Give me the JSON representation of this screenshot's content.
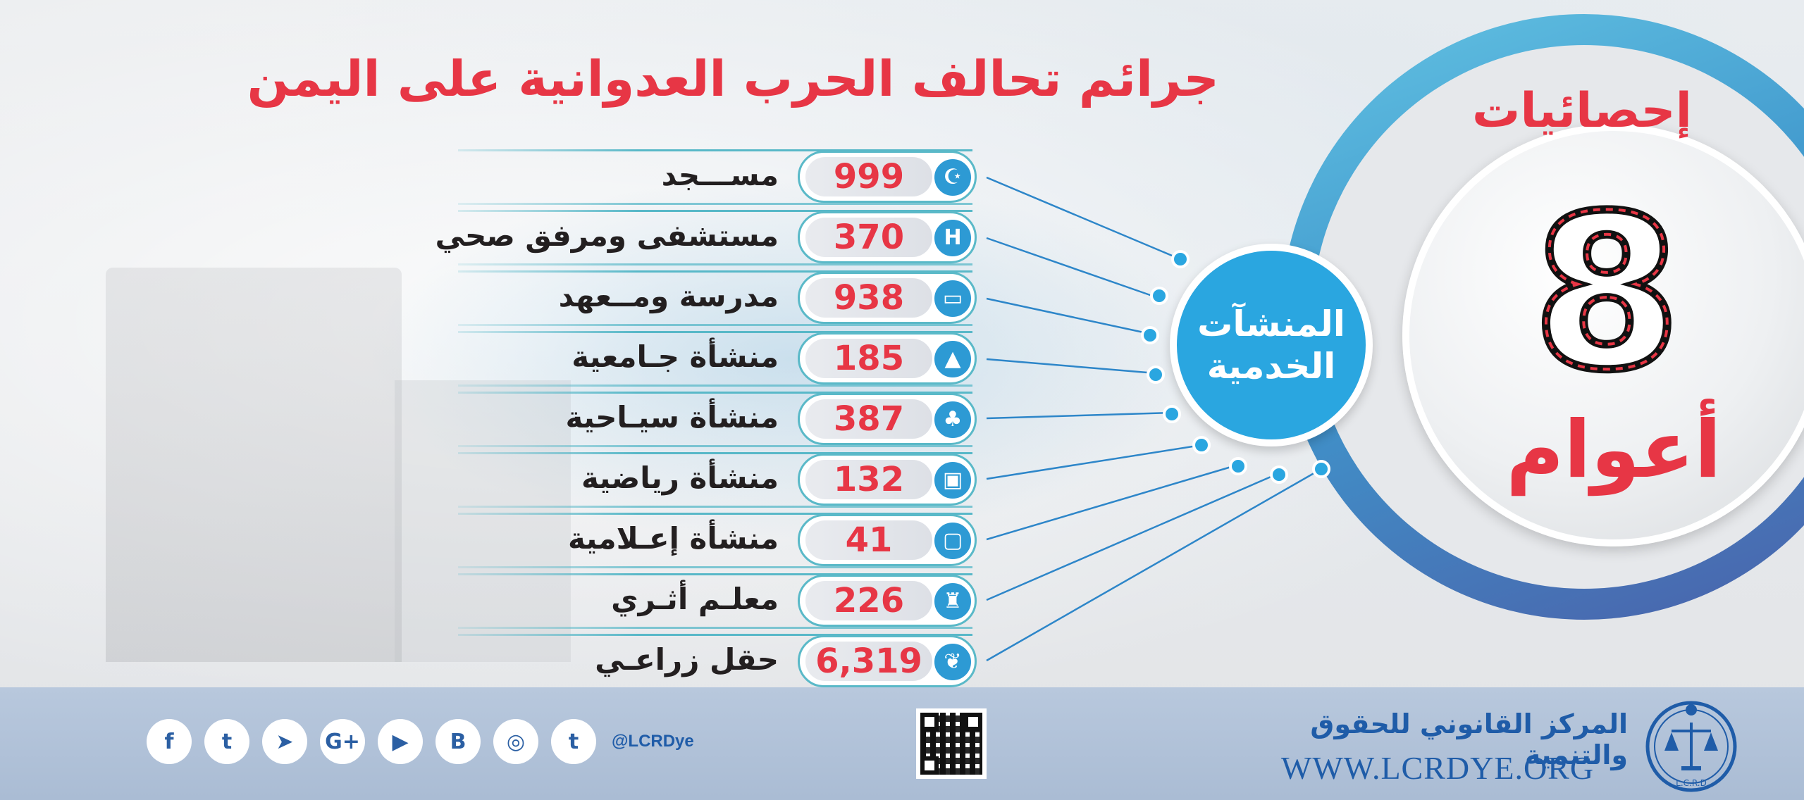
{
  "title": "جرائم تحالف الحرب العدوانية على اليمن",
  "badge": {
    "heading": "إحصائيات",
    "number": "8",
    "unit_word": "أعوام"
  },
  "hub": {
    "line1": "المنشآت",
    "line2": "الخدمية"
  },
  "rows": [
    {
      "label": "مســـجد",
      "value": "999",
      "icon": "mosque-crescent-icon"
    },
    {
      "label": "مستشفى ومرفق صحي",
      "value": "370",
      "icon": "hospital-icon"
    },
    {
      "label": "مدرسة ومــعهد",
      "value": "938",
      "icon": "school-book-icon"
    },
    {
      "label": "منشأة جـامعية",
      "value": "185",
      "icon": "graduation-cap-icon"
    },
    {
      "label": "منشأة سيـاحية",
      "value": "387",
      "icon": "palm-tree-icon"
    },
    {
      "label": "منشأة رياضية",
      "value": "132",
      "icon": "football-field-icon"
    },
    {
      "label": "منشأة إعـلامية",
      "value": "41",
      "icon": "tv-icon"
    },
    {
      "label": "معلـم أثـري",
      "value": "226",
      "icon": "castle-tower-icon"
    },
    {
      "label": "حقل زراعـي",
      "value": "6,319",
      "icon": "wheat-icon"
    }
  ],
  "footer": {
    "org_name": "المركز القانوني للحقوق والتنمية",
    "url": "WWW.LCRDYE.ORG",
    "handle": "@LCRDye",
    "logo_text": "L.C.R.D",
    "social": [
      {
        "name": "facebook-icon",
        "glyph": "f"
      },
      {
        "name": "twitter-icon",
        "glyph": "t"
      },
      {
        "name": "telegram-icon",
        "glyph": "➤"
      },
      {
        "name": "google-plus-icon",
        "glyph": "G+"
      },
      {
        "name": "youtube-icon",
        "glyph": "▶"
      },
      {
        "name": "blogger-icon",
        "glyph": "B"
      },
      {
        "name": "instagram-icon",
        "glyph": "◎"
      },
      {
        "name": "tumblr-icon",
        "glyph": "t"
      }
    ]
  },
  "colors": {
    "accent_red": "#e73645",
    "accent_blue": "#2aa6e0",
    "footer_bg": "#b8c8dd",
    "brand_blue": "#1f5ca8"
  }
}
